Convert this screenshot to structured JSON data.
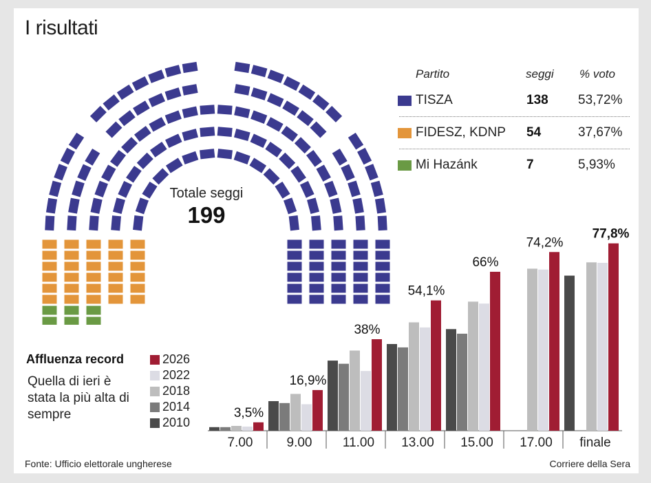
{
  "title": "I risultati",
  "table": {
    "headers": {
      "party": "Partito",
      "seats": "seggi",
      "vote": "% voto"
    },
    "rows": [
      {
        "party": "TISZA",
        "seats": 138,
        "vote": "53,72%",
        "color": "#3b3a8f"
      },
      {
        "party": "FIDESZ, KDNP",
        "seats": 54,
        "vote": "37,67%",
        "color": "#e3953a"
      },
      {
        "party": "Mi Hazánk",
        "seats": 7,
        "vote": "5,93%",
        "color": "#6a9a44"
      }
    ]
  },
  "total": {
    "label": "Totale seggi",
    "value": "199"
  },
  "turnout": {
    "title": "Affluenza record",
    "description": "Quella di ieri è stata la più alta di sempre",
    "source": "Fonte: Ufficio elettorale ungherese",
    "credit": "Corriere della Sera"
  },
  "chart_data": {
    "type": "bar",
    "categories": [
      "7.00",
      "9.00",
      "11.00",
      "13.00",
      "15.00",
      "17.00",
      "finale"
    ],
    "series": [
      {
        "name": "2010",
        "color": "#4a4a4a",
        "values": [
          1.5,
          12.3,
          29.1,
          36.0,
          42.2,
          null,
          64.4
        ]
      },
      {
        "name": "2014",
        "color": "#7b7b7b",
        "values": [
          1.5,
          11.5,
          27.8,
          34.6,
          40.3,
          null,
          null
        ]
      },
      {
        "name": "2018",
        "color": "#bdbdbd",
        "values": [
          2.0,
          15.3,
          33.3,
          45.0,
          53.6,
          67.3,
          69.9
        ]
      },
      {
        "name": "2022",
        "color": "#dcdce4",
        "values": [
          1.7,
          11.0,
          24.8,
          42.9,
          52.8,
          66.9,
          69.7
        ]
      },
      {
        "name": "2026",
        "color": "#a01d33",
        "values": [
          3.5,
          16.9,
          38.0,
          54.1,
          66.0,
          74.2,
          77.8
        ]
      }
    ],
    "labels_2026": [
      "3,5%",
      "16,9%",
      "38%",
      "54,1%",
      "66%",
      "74,2%",
      "77,8%"
    ],
    "ylim": [
      0,
      80
    ],
    "legend_order": [
      "2026",
      "2022",
      "2018",
      "2014",
      "2010"
    ],
    "seats": {
      "TISZA": 138,
      "FIDESZ, KDNP": 54,
      "Mi Hazánk": 7
    }
  }
}
